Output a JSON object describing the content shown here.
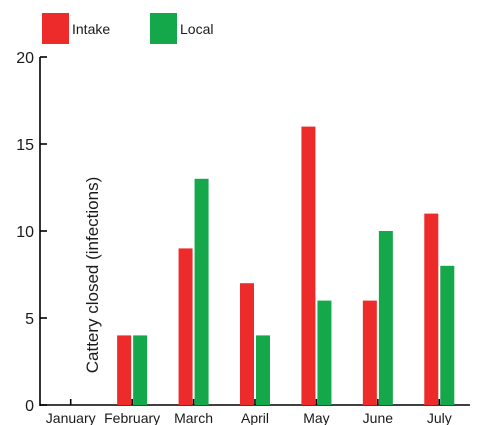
{
  "chart_data": {
    "type": "bar",
    "title": "",
    "xlabel": "",
    "ylabel": "Cattery closed (infections)",
    "categories": [
      "January",
      "February",
      "March",
      "April",
      "May",
      "June",
      "July"
    ],
    "series": [
      {
        "name": "Intake",
        "color": "#ee2b2b",
        "values": [
          0,
          4,
          9,
          7,
          16,
          6,
          11
        ]
      },
      {
        "name": "Local",
        "color": "#15a84a",
        "values": [
          0,
          4,
          13,
          4,
          6,
          10,
          8
        ]
      }
    ],
    "ylim": [
      0,
      20
    ],
    "yticks": [
      0,
      5,
      10,
      15,
      20
    ],
    "grid": false,
    "legend_position": "top-left"
  }
}
